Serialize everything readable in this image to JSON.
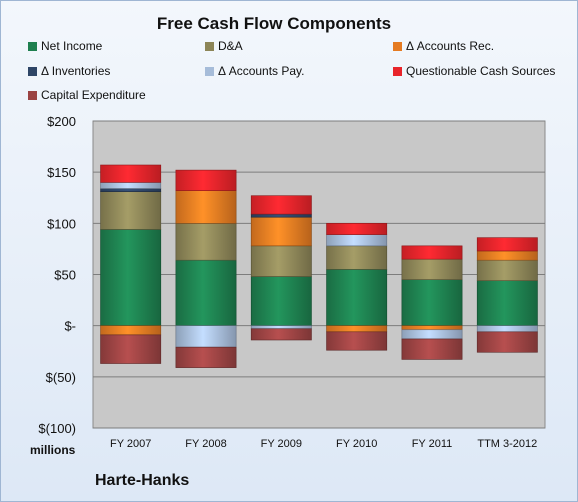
{
  "header": {
    "title": "Free Cash Flow Components"
  },
  "footer": {
    "unit": "millions",
    "company": "Harte-Hanks"
  },
  "chart_data": {
    "type": "bar",
    "stacked": true,
    "title": "Free Cash Flow Components",
    "xlabel": "",
    "ylabel": "millions",
    "ylim": [
      -100,
      200
    ],
    "yticks": [
      -100,
      -50,
      0,
      50,
      100,
      150,
      200
    ],
    "ytick_labels": [
      "$(100)",
      "$(50)",
      "$-",
      "$50",
      "$100",
      "$150",
      "$200"
    ],
    "grid": true,
    "legend_position": "top",
    "categories": [
      "FY 2007",
      "FY 2008",
      "FY 2009",
      "FY 2010",
      "FY 2011",
      "TTM 3-2012"
    ],
    "series": [
      {
        "name": "Net Income",
        "color": "#1e7f4f",
        "values": [
          94,
          64,
          48,
          55,
          45,
          44
        ]
      },
      {
        "name": "D&A",
        "color": "#8c8557",
        "values": [
          37,
          36,
          30,
          23,
          20,
          20
        ]
      },
      {
        "name": "Δ Accounts Rec.",
        "color": "#e57b22",
        "values": [
          -9,
          32,
          28,
          -6,
          -4,
          9
        ]
      },
      {
        "name": "Δ Inventories",
        "color": "#2e4566",
        "values": [
          3,
          0,
          3,
          0,
          0,
          0
        ]
      },
      {
        "name": "Δ Accounts Pay.",
        "color": "#a6bcd9",
        "values": [
          6,
          -21,
          -3,
          11,
          -9,
          -6
        ]
      },
      {
        "name": "Questionable Cash Sources",
        "color": "#e8242a",
        "values": [
          17,
          20,
          18,
          11,
          13,
          13
        ]
      },
      {
        "name": "Capital Expenditure",
        "color": "#9b4343",
        "values": [
          -28,
          -20,
          -11,
          -18,
          -20,
          -20
        ]
      }
    ]
  }
}
